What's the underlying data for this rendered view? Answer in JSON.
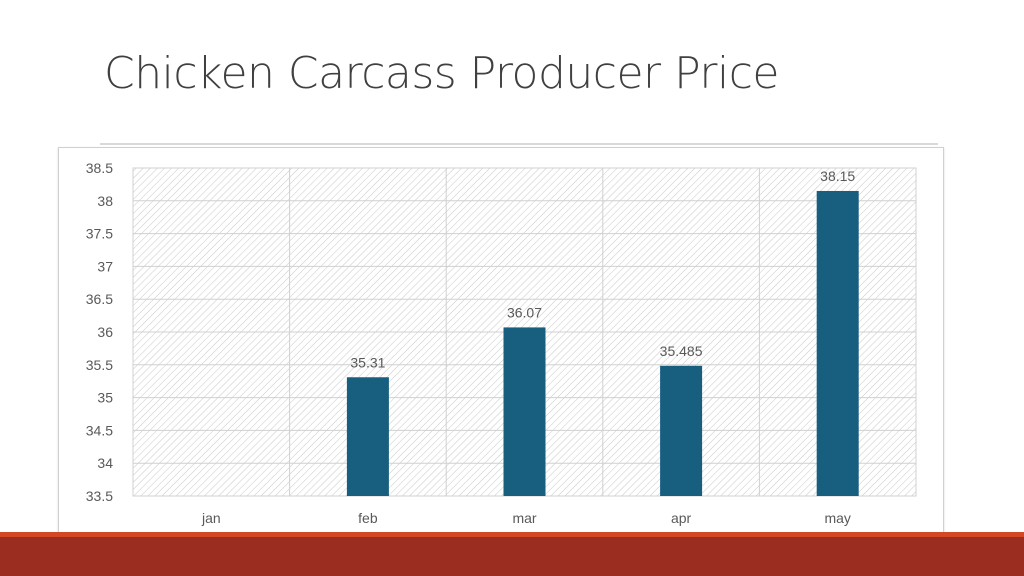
{
  "slide": {
    "title": "Chicken Carcass Producer Price"
  },
  "colors": {
    "bar": "#175e7f",
    "footer": "#9b2d20",
    "footer_stripe": "#d24726"
  },
  "chart_data": {
    "type": "bar",
    "title": "",
    "xlabel": "",
    "ylabel": "",
    "categories": [
      "jan",
      "feb",
      "mar",
      "apr",
      "may"
    ],
    "values": [
      null,
      35.31,
      36.07,
      35.485,
      38.15
    ],
    "data_labels": [
      "",
      "35.31",
      "36.07",
      "35.485",
      "38.15"
    ],
    "ylim": [
      33.5,
      38.5
    ],
    "yticks": [
      "33.5",
      "34",
      "34.5",
      "35",
      "35.5",
      "36",
      "36.5",
      "37",
      "37.5",
      "38",
      "38.5"
    ],
    "grid": true,
    "legend": "none"
  }
}
